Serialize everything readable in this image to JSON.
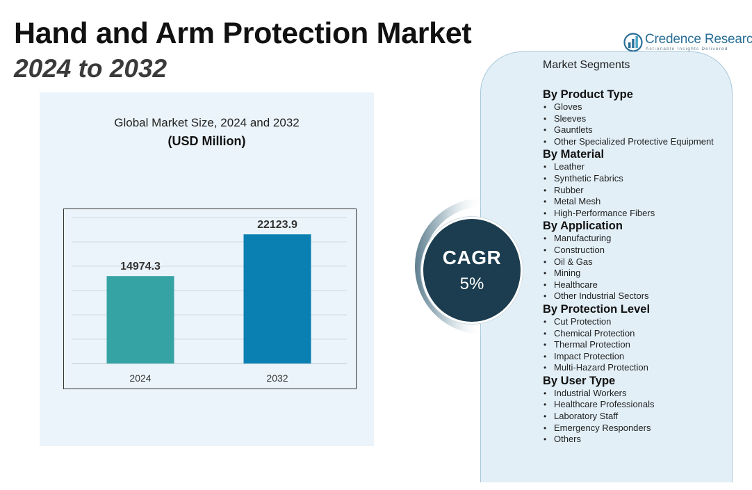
{
  "title": {
    "line1": "Hand and Arm Protection Market",
    "line2": "2024 to 2032"
  },
  "logo": {
    "name": "Credence Research",
    "tagline": "Actionable Insights Delivered",
    "icon": "bar-chart-logo-icon"
  },
  "colors": {
    "bar_2024": "#35a2a3",
    "bar_2032": "#0a7fb1",
    "cagr_circle": "#1b3d4f",
    "panel_bg": "#ebf4fa",
    "segments_bg": "#e2eff7"
  },
  "chart_data": {
    "type": "bar",
    "title": "Global Market Size, 2024 and 2032",
    "subtitle": "(USD Million)",
    "categories": [
      "2024",
      "2032"
    ],
    "values": [
      14974.3,
      22123.9
    ],
    "value_labels": [
      "14974.3",
      "22123.9"
    ],
    "ylim": [
      0,
      25000
    ],
    "grid": true,
    "xlabel": "",
    "ylabel": ""
  },
  "cagr": {
    "label": "CAGR",
    "value": "5%"
  },
  "segments": {
    "heading": "Market Segments",
    "groups": [
      {
        "title": "By Product Type",
        "items": [
          "Gloves",
          "Sleeves",
          "Gauntlets",
          "Other Specialized Protective Equipment"
        ]
      },
      {
        "title": "By Material",
        "items": [
          "Leather",
          "Synthetic Fabrics",
          "Rubber",
          "Metal Mesh",
          "High-Performance Fibers"
        ]
      },
      {
        "title": "By Application",
        "items": [
          "Manufacturing",
          "Construction",
          "Oil & Gas",
          "Mining",
          "Healthcare",
          "Other Industrial Sectors"
        ]
      },
      {
        "title": "By Protection Level",
        "items": [
          "Cut Protection",
          "Chemical Protection",
          "Thermal Protection",
          "Impact Protection",
          "Multi-Hazard Protection"
        ]
      },
      {
        "title": "By User Type",
        "items": [
          "Industrial Workers",
          "Healthcare Professionals",
          "Laboratory Staff",
          "Emergency Responders",
          "Others"
        ]
      }
    ]
  }
}
